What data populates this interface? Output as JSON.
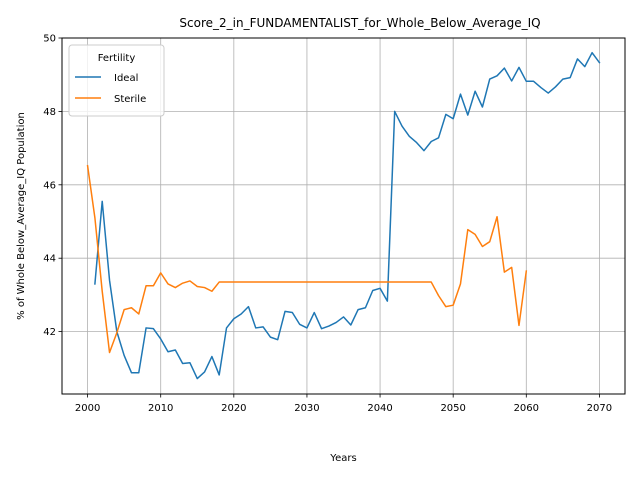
{
  "chart_data": {
    "type": "line",
    "title": "Score_2_in_FUNDAMENTALIST_for_Whole_Below_Average_IQ",
    "xlabel": "Years",
    "ylabel": "% of Whole Below_Average_IQ Population",
    "xlim": [
      1996.5,
      2073.5
    ],
    "ylim": [
      40.3,
      50.0
    ],
    "xticks": [
      2000,
      2010,
      2020,
      2030,
      2040,
      2050,
      2060,
      2070
    ],
    "yticks": [
      42,
      44,
      46,
      48,
      50
    ],
    "grid": true,
    "legend": {
      "title": "Fertility",
      "position": "top-left"
    },
    "series": [
      {
        "name": "Ideal",
        "color": "#1f77b4",
        "x": [
          2001,
          2002,
          2003,
          2004,
          2005,
          2006,
          2007,
          2008,
          2009,
          2010,
          2011,
          2012,
          2013,
          2014,
          2015,
          2016,
          2017,
          2018,
          2019,
          2020,
          2021,
          2022,
          2023,
          2024,
          2025,
          2026,
          2027,
          2028,
          2029,
          2030,
          2031,
          2032,
          2033,
          2034,
          2035,
          2036,
          2037,
          2038,
          2039,
          2040,
          2041,
          2042,
          2043,
          2044,
          2045,
          2046,
          2047,
          2048,
          2049,
          2050,
          2051,
          2052,
          2053,
          2054,
          2055,
          2056,
          2057,
          2058,
          2059,
          2060,
          2061,
          2062,
          2063,
          2064,
          2065,
          2066,
          2067,
          2068,
          2069,
          2070
        ],
        "y": [
          43.3,
          45.55,
          43.4,
          42.0,
          41.35,
          40.88,
          40.88,
          42.1,
          42.08,
          41.8,
          41.45,
          41.5,
          41.13,
          41.15,
          40.72,
          40.9,
          41.32,
          40.82,
          42.1,
          42.35,
          42.48,
          42.68,
          42.1,
          42.13,
          41.85,
          41.78,
          42.55,
          42.52,
          42.2,
          42.1,
          42.52,
          42.08,
          42.15,
          42.25,
          42.4,
          42.18,
          42.6,
          42.65,
          43.12,
          43.18,
          42.83,
          48.0,
          47.6,
          47.32,
          47.15,
          46.93,
          47.18,
          47.28,
          47.92,
          47.8,
          48.47,
          47.9,
          48.55,
          48.12,
          48.88,
          48.97,
          49.18,
          48.83,
          49.2,
          48.82,
          48.82,
          48.65,
          48.5,
          48.67,
          48.88,
          48.92,
          49.43,
          49.22,
          49.6,
          49.33
        ]
      },
      {
        "name": "Sterile",
        "color": "#ff7f0e",
        "x": [
          2000,
          2001,
          2002,
          2003,
          2004,
          2005,
          2006,
          2007,
          2008,
          2009,
          2010,
          2011,
          2012,
          2013,
          2014,
          2015,
          2016,
          2017,
          2018,
          2019,
          2020,
          2021,
          2022,
          2023,
          2024,
          2025,
          2026,
          2027,
          2028,
          2029,
          2030,
          2031,
          2032,
          2033,
          2034,
          2035,
          2036,
          2037,
          2038,
          2039,
          2040,
          2041,
          2042,
          2043,
          2044,
          2045,
          2046,
          2047,
          2048,
          2049,
          2050,
          2051,
          2052,
          2053,
          2054,
          2055,
          2056,
          2057,
          2058,
          2059,
          2060
        ],
        "y": [
          46.52,
          45.1,
          43.1,
          41.43,
          41.97,
          42.6,
          42.65,
          42.48,
          43.25,
          43.25,
          43.6,
          43.3,
          43.2,
          43.32,
          43.38,
          43.23,
          43.2,
          43.1,
          43.35,
          43.35,
          43.35,
          43.35,
          43.35,
          43.35,
          43.35,
          43.35,
          43.35,
          43.35,
          43.35,
          43.35,
          43.35,
          43.35,
          43.35,
          43.35,
          43.35,
          43.35,
          43.35,
          43.35,
          43.35,
          43.35,
          43.35,
          43.35,
          43.35,
          43.35,
          43.35,
          43.35,
          43.35,
          43.35,
          42.98,
          42.68,
          42.72,
          43.3,
          44.78,
          44.65,
          44.32,
          44.45,
          45.13,
          43.62,
          43.75,
          42.17,
          43.65
        ]
      }
    ]
  }
}
